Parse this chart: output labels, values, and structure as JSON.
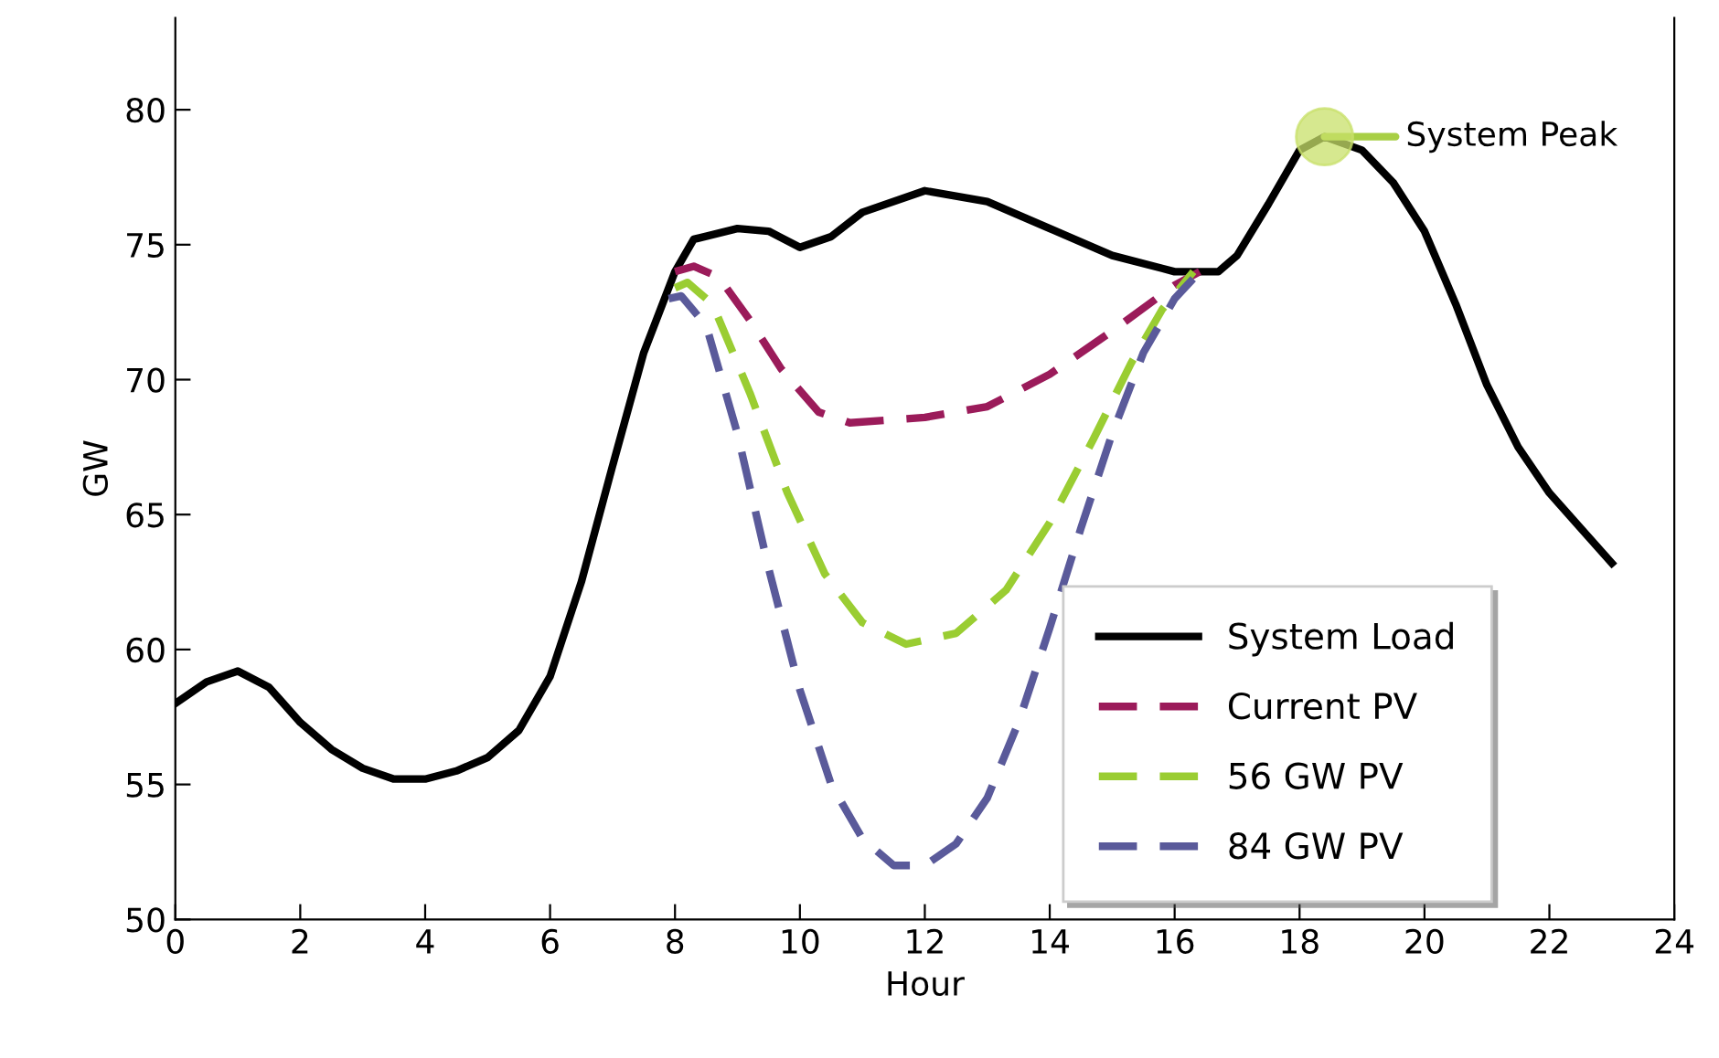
{
  "chart_data": {
    "type": "line",
    "xlabel": "Hour",
    "ylabel": "GW",
    "xlim": [
      0,
      24
    ],
    "xticks": [
      0,
      2,
      4,
      6,
      8,
      10,
      12,
      14,
      16,
      18,
      20,
      22,
      24
    ],
    "ylim": [
      50,
      83.4
    ],
    "yticks": [
      50,
      55,
      60,
      65,
      70,
      75,
      80
    ],
    "grid": false,
    "legend": "bottom right",
    "marker": "none",
    "annotations": [
      {
        "text": "System Peak",
        "x": 18.4,
        "y": 79
      }
    ],
    "series": [
      {
        "name": "System Load",
        "color": "#000000",
        "line_style": "solid",
        "x": [
          0,
          0.5,
          1,
          1.5,
          2,
          2.5,
          3,
          3.5,
          4,
          4.5,
          5,
          5.5,
          6,
          6.5,
          7,
          7.5,
          8,
          8.3,
          9,
          9.5,
          10,
          10.5,
          11,
          12,
          13,
          14,
          15,
          16,
          16.7,
          17,
          17.5,
          18,
          18.4,
          19,
          19.5,
          20,
          20.5,
          21,
          21.5,
          22,
          22.5,
          23
        ],
        "values": [
          58.0,
          58.8,
          59.2,
          58.6,
          57.3,
          56.3,
          55.6,
          55.2,
          55.2,
          55.5,
          56.0,
          57.0,
          59.0,
          62.5,
          66.8,
          71.0,
          74.0,
          75.2,
          75.6,
          75.5,
          74.9,
          75.3,
          76.2,
          77.0,
          76.6,
          75.6,
          74.6,
          74.0,
          74.0,
          74.6,
          76.5,
          78.5,
          79.0,
          78.5,
          77.3,
          75.5,
          72.8,
          69.8,
          67.5,
          65.8,
          64.5,
          63.2
        ]
      },
      {
        "name": "Current PV",
        "color": "#9b1b5a",
        "line_style": "dashed",
        "x": [
          8,
          8.3,
          8.7,
          9.2,
          9.7,
          10.3,
          10.8,
          12,
          13,
          14,
          15,
          16,
          16.4
        ],
        "values": [
          74.0,
          74.2,
          73.8,
          72.2,
          70.4,
          68.8,
          68.4,
          68.6,
          69.0,
          70.2,
          71.8,
          73.5,
          74.0
        ]
      },
      {
        "name": "56 GW PV",
        "color": "#9acd32",
        "line_style": "dashed",
        "x": [
          8,
          8.2,
          8.6,
          9.2,
          9.8,
          10.4,
          11,
          11.7,
          12.5,
          13.3,
          14,
          14.7,
          15.3,
          15.8,
          16.3
        ],
        "values": [
          73.4,
          73.6,
          72.8,
          69.5,
          65.8,
          62.8,
          61.0,
          60.2,
          60.6,
          62.2,
          64.7,
          67.8,
          70.6,
          72.6,
          74.0
        ]
      },
      {
        "name": "84 GW PV",
        "color": "#5a5a9a",
        "line_style": "dashed",
        "x": [
          7.9,
          8.1,
          8.5,
          9,
          9.5,
          10,
          10.5,
          11,
          11.5,
          12,
          12.5,
          13,
          13.5,
          14,
          14.5,
          15,
          15.5,
          16,
          16.4
        ],
        "values": [
          73.0,
          73.1,
          72.0,
          68.0,
          63.0,
          58.5,
          55.0,
          53.0,
          52.0,
          52.0,
          52.8,
          54.5,
          57.3,
          60.8,
          64.5,
          68.0,
          71.0,
          73.0,
          74.0
        ]
      }
    ]
  }
}
